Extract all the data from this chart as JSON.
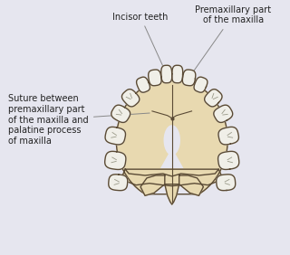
{
  "background_color": "#e6e6ef",
  "palate_fill": "#e8d9b0",
  "palate_edge": "#5a4a35",
  "tooth_fill": "#f0efe8",
  "tooth_edge": "#5a4a35",
  "suture_color": "#5a4a35",
  "annotation_color": "#222222",
  "line_color": "#888888",
  "label_incisor": "Incisor teeth",
  "label_premaxillary": "Premaxillary part\nof the maxilla",
  "label_suture": "Suture between\npremaxillary part\nof the maxilla and\npalatine process\nof maxilla",
  "figsize": [
    3.2,
    2.82
  ],
  "dpi": 100
}
